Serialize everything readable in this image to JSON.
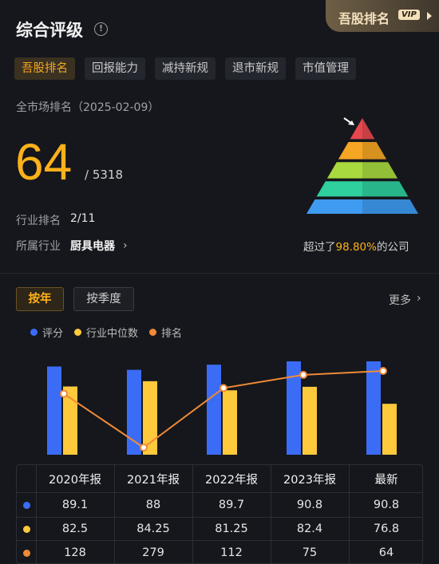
{
  "header": {
    "title": "综合评级",
    "info_icon": "info-icon",
    "vip_label": "吾股排名",
    "vip_tag": "VIP"
  },
  "tabs": [
    "吾股排名",
    "回报能力",
    "减持新规",
    "退市新规",
    "市值管理"
  ],
  "active_tab": 0,
  "rank": {
    "market_label": "全市场排名（2025-02-09）",
    "value": "64",
    "slash_total": "/ 5318",
    "industry_rank_label": "行业排名",
    "industry_rank_value": "2/11",
    "industry_label": "所属行业",
    "industry_value": "厨具电器",
    "beat_prefix": "超过了",
    "beat_pct": "98.80%",
    "beat_suffix": "的公司"
  },
  "pyramid": {
    "colors": [
      "#e5484d",
      "#f5a623",
      "#a8d93f",
      "#2fcf9e",
      "#3f9bef"
    ],
    "level": 0.988
  },
  "modes": {
    "year": "按年",
    "quarter": "按季度",
    "active": "year"
  },
  "more_label": "更多",
  "colors": {
    "score": "#3b6cf6",
    "median": "#ffc93c",
    "rank": "#f08a36"
  },
  "chart_data": {
    "type": "bar",
    "categories": [
      "2020年报",
      "2021年报",
      "2022年报",
      "2023年报",
      "最新"
    ],
    "series": [
      {
        "name": "评分",
        "type": "bar",
        "values": [
          89.1,
          88,
          89.7,
          90.8,
          90.8
        ]
      },
      {
        "name": "行业中位数",
        "type": "bar",
        "values": [
          82.5,
          84.25,
          81.25,
          82.4,
          76.8
        ]
      },
      {
        "name": "排名",
        "type": "line",
        "values": [
          128,
          279,
          112,
          75,
          64
        ]
      }
    ],
    "legend_position": "top-left",
    "grid": false
  },
  "table": {
    "headers": [
      "2020年报",
      "2021年报",
      "2022年报",
      "2023年报",
      "最新"
    ],
    "rows": [
      [
        "89.1",
        "88",
        "89.7",
        "90.8",
        "90.8"
      ],
      [
        "82.5",
        "84.25",
        "81.25",
        "82.4",
        "76.8"
      ],
      [
        "128",
        "279",
        "112",
        "75",
        "64"
      ]
    ]
  }
}
